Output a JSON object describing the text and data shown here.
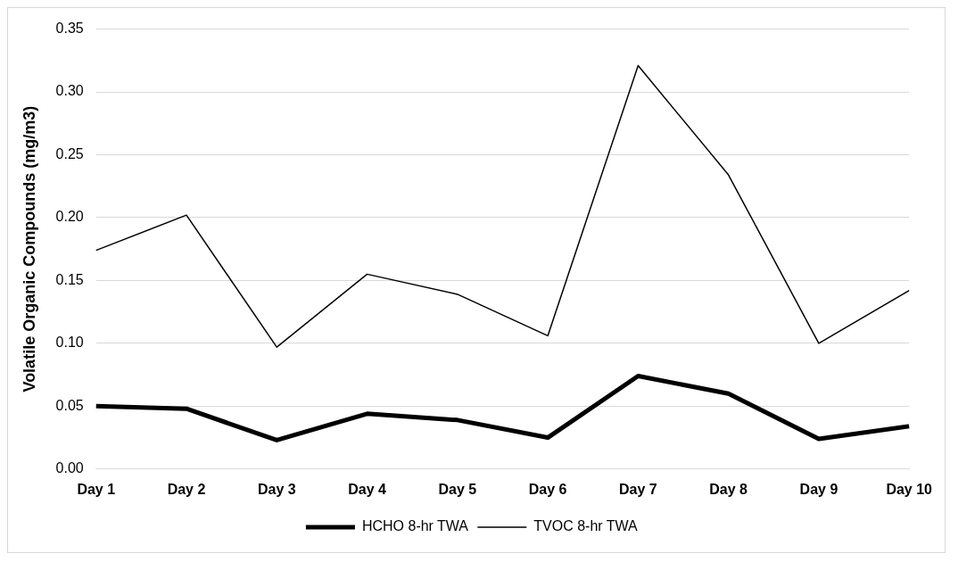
{
  "chart_data": {
    "type": "line",
    "ylabel": "Volatile Organic Compounds (mg/m3)",
    "categories": [
      "Day 1",
      "Day 2",
      "Day 3",
      "Day 4",
      "Day 5",
      "Day 6",
      "Day 7",
      "Day 8",
      "Day 9",
      "Day 10"
    ],
    "series": [
      {
        "name": "HCHO 8-hr TWA",
        "color": "#000000",
        "values": [
          0.05,
          0.048,
          0.023,
          0.044,
          0.039,
          0.025,
          0.074,
          0.06,
          0.024,
          0.034
        ]
      },
      {
        "name": "TVOC 8-hr TWA",
        "color": "#000000",
        "values": [
          0.174,
          0.202,
          0.097,
          0.155,
          0.139,
          0.106,
          0.321,
          0.234,
          0.1,
          0.142
        ]
      }
    ],
    "ylim": [
      0,
      0.35
    ],
    "yticks": [
      {
        "value": 0,
        "label": "0.00"
      },
      {
        "value": 0.05,
        "label": "0.05"
      },
      {
        "value": 0.1,
        "label": "0.10"
      },
      {
        "value": 0.15,
        "label": "0.15"
      },
      {
        "value": 0.2,
        "label": "0.20"
      },
      {
        "value": 0.25,
        "label": "0.25"
      },
      {
        "value": 0.3,
        "label": "0.30"
      },
      {
        "value": 0.35,
        "label": "0.35"
      }
    ],
    "grid": "y",
    "legend": "bottom",
    "marker": "none",
    "line_style": "solid"
  }
}
